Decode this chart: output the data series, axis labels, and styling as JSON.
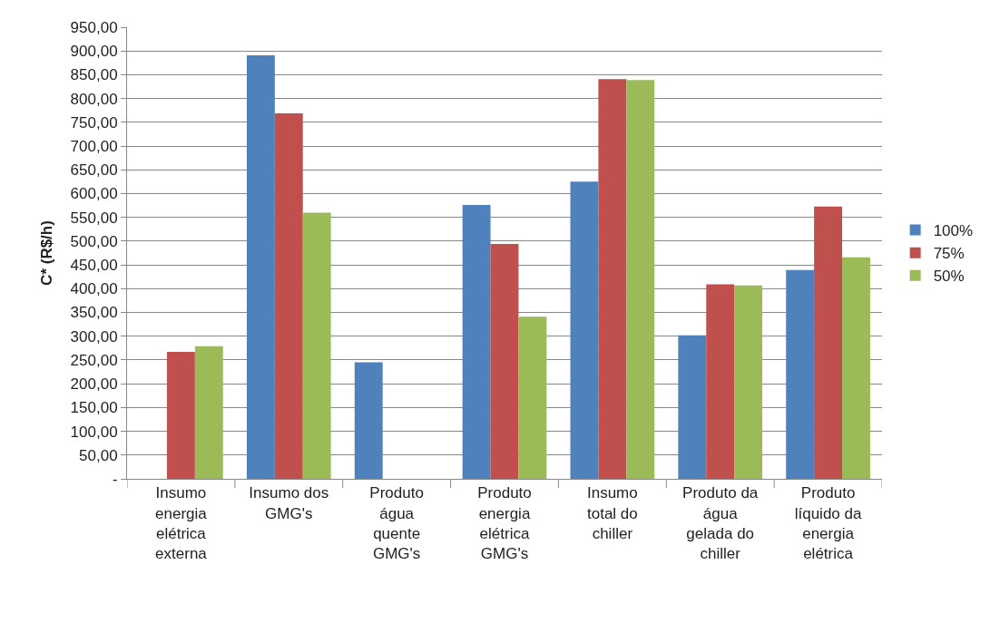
{
  "chart_data": {
    "type": "bar",
    "ylabel": "C* (R$/h)",
    "categories": [
      "Insumo energia elétrica externa",
      "Insumo dos GMG's",
      "Produto água quente GMG's",
      "Produto energia elétrica GMG's",
      "Insumo total do chiller",
      "Produto da água gelada do chiller",
      "Produto líquido da energia elétrica"
    ],
    "series": [
      {
        "name": "100%",
        "color": "#4f81bd",
        "values": [
          null,
          891,
          245,
          576,
          625,
          302,
          439
        ]
      },
      {
        "name": "75%",
        "color": "#c0504d",
        "values": [
          267,
          769,
          null,
          494,
          841,
          409,
          573
        ]
      },
      {
        "name": "50%",
        "color": "#9bbb59",
        "values": [
          279,
          560,
          null,
          341,
          839,
          407,
          466
        ]
      }
    ],
    "ylim": [
      0,
      950
    ],
    "yticks": [
      {
        "value": 0,
        "label": "-"
      },
      {
        "value": 50,
        "label": "50,00"
      },
      {
        "value": 100,
        "label": "100,00"
      },
      {
        "value": 150,
        "label": "150,00"
      },
      {
        "value": 200,
        "label": "200,00"
      },
      {
        "value": 250,
        "label": "250,00"
      },
      {
        "value": 300,
        "label": "300,00"
      },
      {
        "value": 350,
        "label": "350,00"
      },
      {
        "value": 400,
        "label": "400,00"
      },
      {
        "value": 450,
        "label": "450,00"
      },
      {
        "value": 500,
        "label": "500,00"
      },
      {
        "value": 550,
        "label": "550,00"
      },
      {
        "value": 600,
        "label": "600,00"
      },
      {
        "value": 650,
        "label": "650,00"
      },
      {
        "value": 700,
        "label": "700,00"
      },
      {
        "value": 750,
        "label": "750,00"
      },
      {
        "value": 800,
        "label": "800,00"
      },
      {
        "value": 850,
        "label": "850,00"
      },
      {
        "value": 900,
        "label": "900,00"
      },
      {
        "value": 950,
        "label": "950,00"
      }
    ],
    "grid": "y",
    "legend": "right"
  }
}
